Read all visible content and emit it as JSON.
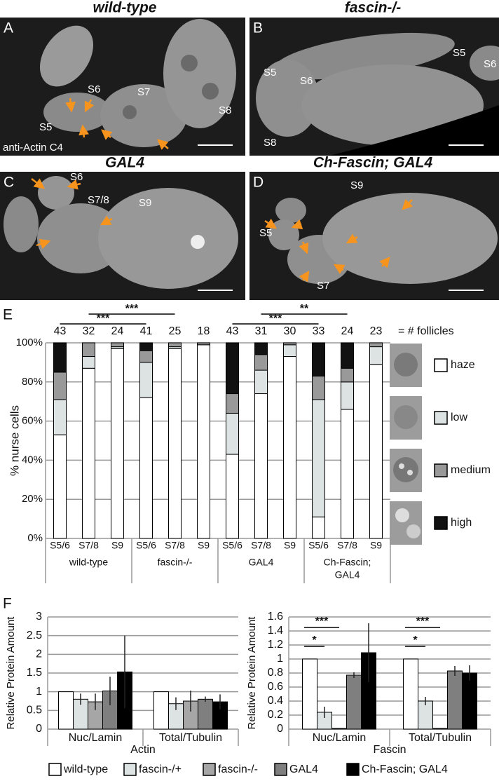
{
  "panels": [
    {
      "letter": "A",
      "title": "wild-type",
      "labels": [
        "S6",
        "S7",
        "S8",
        "S5",
        "anti-Actin C4"
      ]
    },
    {
      "letter": "B",
      "title": "fascin-/-",
      "labels": [
        "S5",
        "S6",
        "S5",
        "S6",
        "S8"
      ]
    },
    {
      "letter": "C",
      "title": "GAL4",
      "labels": [
        "S6",
        "S7/8",
        "S9"
      ]
    },
    {
      "letter": "D",
      "title": "Ch-Fascin; GAL4",
      "labels": [
        "S9",
        "S5",
        "S7"
      ]
    }
  ],
  "chart_data": [
    {
      "type": "bar",
      "stacked": true,
      "letter": "E",
      "ylabel": "% nurse cells",
      "categories": [
        "S5/6",
        "S7/8",
        "S9",
        "S5/6",
        "S7/8",
        "S9",
        "S5/6",
        "S7/8",
        "S9",
        "S5/6",
        "S7/8",
        "S9"
      ],
      "groups": [
        [
          "wild-type"
        ],
        [
          "fascin-/-"
        ],
        [
          "GAL4"
        ],
        [
          "Ch-Fascin;",
          "GAL4"
        ]
      ],
      "counts": [
        43,
        32,
        24,
        41,
        25,
        18,
        43,
        31,
        30,
        33,
        24,
        23
      ],
      "counts_label": "= # follicles",
      "series": [
        {
          "name": "haze",
          "color": "#ffffff",
          "values": [
            53,
            87,
            97,
            72,
            97,
            99,
            43,
            74,
            93,
            11,
            66,
            89
          ]
        },
        {
          "name": "low",
          "color": "#dde3e3",
          "values": [
            18,
            6,
            1,
            18,
            1,
            0,
            21,
            12,
            6,
            60,
            14,
            9
          ]
        },
        {
          "name": "medium",
          "color": "#999999",
          "values": [
            14,
            7,
            2,
            6,
            2,
            1,
            10,
            8,
            1,
            12,
            7,
            2
          ]
        },
        {
          "name": "high",
          "color": "#111111",
          "values": [
            15,
            0,
            0,
            4,
            0,
            0,
            26,
            6,
            0,
            17,
            13,
            0
          ]
        }
      ],
      "ylim": [
        0,
        100
      ],
      "yticks": [
        {
          "value": 0,
          "label": "0%"
        },
        {
          "value": 20,
          "label": "20%"
        },
        {
          "value": 40,
          "label": "40%"
        },
        {
          "value": 60,
          "label": "60%"
        },
        {
          "value": 80,
          "label": "80%"
        },
        {
          "value": 100,
          "label": "100%"
        }
      ],
      "significance": [
        "***",
        "***",
        "**",
        "***"
      ],
      "grid": true
    },
    {
      "type": "bar",
      "letter": "F",
      "ylabel": "Relative Protein Amount",
      "xlabel": "Actin",
      "categories": [
        "Nuc/Lamin",
        "Total/Tubulin"
      ],
      "series": [
        {
          "name": "wild-type",
          "color": "#ffffff",
          "values": [
            1,
            1
          ],
          "errors": [
            null,
            null
          ]
        },
        {
          "name": "fascin-/+",
          "color": "#dde3e3",
          "values": [
            0.8,
            0.68
          ],
          "errors": [
            0.15,
            0.17
          ]
        },
        {
          "name": "fascin-/-",
          "color": "#a6a6a6",
          "values": [
            0.73,
            0.75
          ],
          "errors": [
            0.22,
            0.28
          ]
        },
        {
          "name": "GAL4",
          "color": "#7f7f7f",
          "values": [
            1.02,
            0.8
          ],
          "errors": [
            0.38,
            0.07
          ]
        },
        {
          "name": "Ch-Fascin; GAL4",
          "color": "#000000",
          "values": [
            1.53,
            0.73
          ],
          "errors": [
            0.97,
            0.2
          ]
        }
      ],
      "ylim": [
        0,
        3
      ],
      "yticks": [
        0,
        0.5,
        1,
        1.5,
        2,
        2.5,
        3
      ],
      "grid": true
    },
    {
      "type": "bar",
      "ylabel": "Relative Protein Amount",
      "xlabel": "Fascin",
      "categories": [
        "Nuc/Lamin",
        "Total/Tubulin"
      ],
      "series": [
        {
          "color": "#ffffff",
          "values": [
            1,
            1
          ],
          "errors": [
            null,
            null
          ]
        },
        {
          "color": "#dde3e3",
          "values": [
            0.24,
            0.4
          ],
          "errors": [
            0.08,
            0.06
          ]
        },
        {
          "color": "#a6a6a6",
          "values": [
            0.01,
            0.01
          ],
          "errors": [
            null,
            null
          ]
        },
        {
          "color": "#7f7f7f",
          "values": [
            0.77,
            0.83
          ],
          "errors": [
            0.04,
            0.07
          ]
        },
        {
          "color": "#000000",
          "values": [
            1.09,
            0.8
          ],
          "errors": [
            0.42,
            0.11
          ]
        }
      ],
      "ylim": [
        0,
        1.6
      ],
      "yticks": [
        0,
        0.2,
        0.4,
        0.6,
        0.8,
        1,
        1.2,
        1.4,
        1.6
      ],
      "significance": [
        "*",
        "***",
        "*",
        "***"
      ],
      "grid": true
    }
  ]
}
